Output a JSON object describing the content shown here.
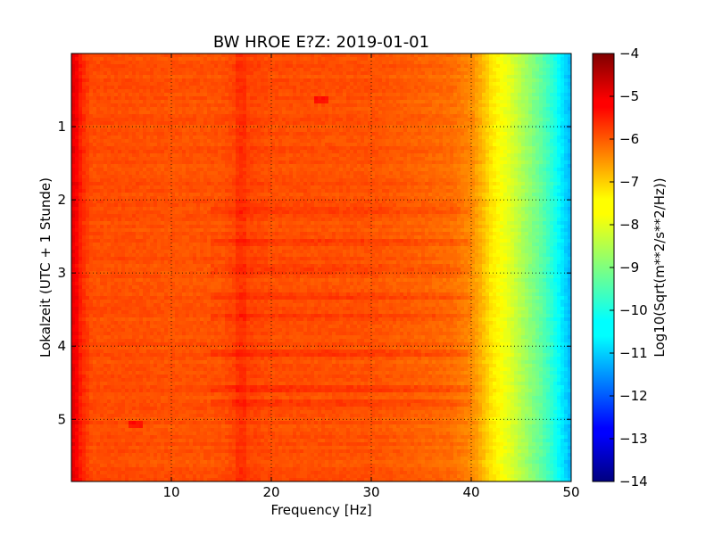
{
  "chart_data": {
    "type": "heatmap",
    "title": "BW HROE E?Z: 2019-01-01",
    "xlabel": "Frequency [Hz]",
    "ylabel": "Lokalzeit (UTC + 1 Stunde)",
    "xlim": [
      0,
      50
    ],
    "ylim": [
      5.85,
      0
    ],
    "xticks": [
      10,
      20,
      30,
      40,
      50
    ],
    "yticks": [
      1,
      2,
      3,
      4,
      5
    ],
    "grid": true,
    "colormap": "jet",
    "colorbar": {
      "label": "Log10(Sqrt(m**2/s**2/Hz))",
      "min": -14,
      "max": -4,
      "ticks": [
        -4,
        -5,
        -6,
        -7,
        -8,
        -9,
        -10,
        -11,
        -12,
        -13,
        -14
      ]
    },
    "value_profile_by_frequency": {
      "frequency_hz": [
        0,
        0.5,
        1,
        2,
        5,
        10,
        15,
        17,
        20,
        30,
        38,
        40,
        41,
        42,
        43,
        44,
        45,
        46,
        47,
        48,
        49,
        50
      ],
      "log10_value": [
        -5.0,
        -5.2,
        -5.6,
        -6.0,
        -6.0,
        -6.05,
        -6.05,
        -5.85,
        -6.0,
        -6.05,
        -6.3,
        -6.6,
        -7.0,
        -7.5,
        -7.8,
        -8.1,
        -8.5,
        -8.9,
        -9.3,
        -9.8,
        -10.4,
        -11.0
      ]
    },
    "features": {
      "vertical_band_hz": 17,
      "horizontal_bands_hour": [
        2.15,
        2.6,
        2.95,
        3.3,
        3.6,
        4.1,
        4.6,
        4.8
      ],
      "blips": [
        {
          "frequency_hz": 25,
          "hour": 0.65
        },
        {
          "frequency_hz": 6.5,
          "hour": 5.05
        }
      ]
    }
  }
}
